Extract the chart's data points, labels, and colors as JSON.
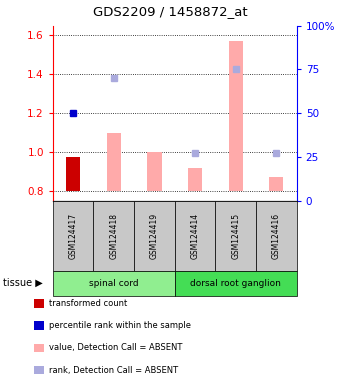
{
  "title": "GDS2209 / 1458872_at",
  "samples": [
    "GSM124417",
    "GSM124418",
    "GSM124419",
    "GSM124414",
    "GSM124415",
    "GSM124416"
  ],
  "groups": [
    {
      "name": "spinal cord",
      "indices": [
        0,
        1,
        2
      ]
    },
    {
      "name": "dorsal root ganglion",
      "indices": [
        3,
        4,
        5
      ]
    }
  ],
  "ylim_left": [
    0.75,
    1.65
  ],
  "ylim_right": [
    0,
    100
  ],
  "yticks_left": [
    0.8,
    1.0,
    1.2,
    1.4,
    1.6
  ],
  "ytick_labels_left": [
    "0.8",
    "1.0",
    "1.2",
    "1.4",
    "1.6"
  ],
  "yticks_right": [
    0,
    25,
    50,
    75,
    100
  ],
  "ytick_labels_right": [
    "0",
    "25",
    "50",
    "75",
    "100%"
  ],
  "bar_base": 0.8,
  "bar_value_heights": [
    0.975,
    1.1,
    1.0,
    0.92,
    1.57,
    0.87
  ],
  "bar_is_present": [
    true,
    false,
    false,
    false,
    false,
    false
  ],
  "bar_color_present": "#CC0000",
  "bar_color_absent": "#FFAAAA",
  "rank_pcts": [
    50.0,
    70.0,
    null,
    27.0,
    75.0,
    27.0
  ],
  "rank_is_present": [
    true,
    false,
    false,
    false,
    false,
    false
  ],
  "rank_color_present": "#0000CC",
  "rank_color_absent": "#AAAADD",
  "legend_colors": [
    "#CC0000",
    "#0000CC",
    "#FFAAAA",
    "#AAAADD"
  ],
  "legend_labels": [
    "transformed count",
    "percentile rank within the sample",
    "value, Detection Call = ABSENT",
    "rank, Detection Call = ABSENT"
  ],
  "group_color_spinal": "#90EE90",
  "group_color_dorsal": "#44DD55",
  "label_gray": "#C8C8C8"
}
